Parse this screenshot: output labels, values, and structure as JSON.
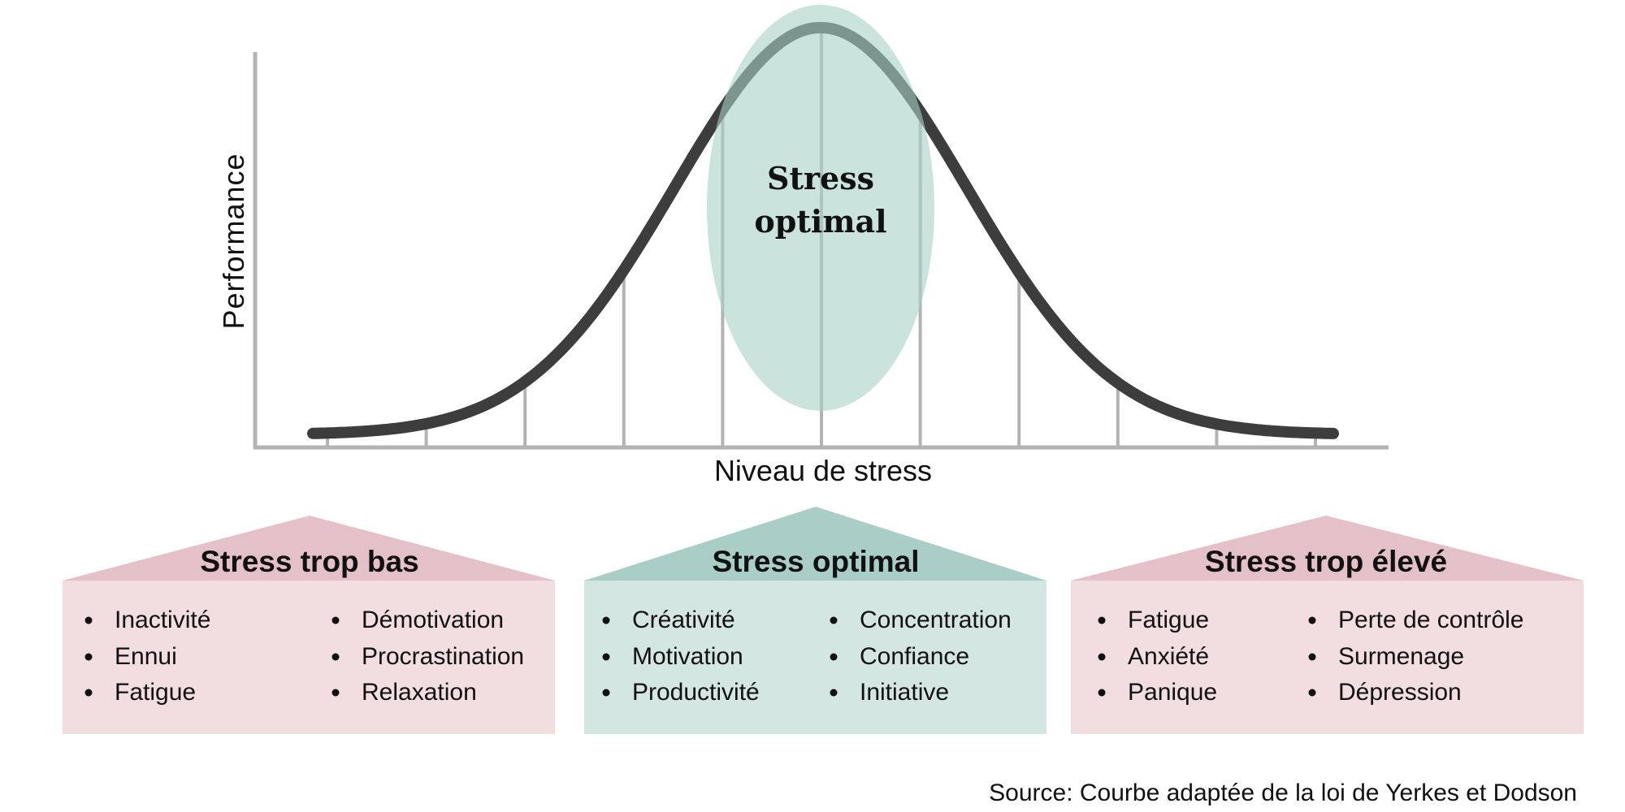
{
  "diagram": {
    "y_axis_label": "Performance",
    "x_axis_label": "Niveau de stress",
    "center_label_lines": [
      "Stress",
      "optimal"
    ],
    "colors": {
      "curve": "#3d3d3d",
      "axis": "#b3b3b3",
      "ellipse": "#a9d1c6",
      "pink_roof": "#e4c1c8",
      "pink_body": "#f2dde1",
      "teal_roof": "#a8cec5",
      "teal_body": "#d3e6e1"
    }
  },
  "panels": [
    {
      "title": "Stress trop bas",
      "col1": [
        "Inactivité",
        "Ennui",
        "Fatigue"
      ],
      "col2": [
        "Démotivation",
        "Procrastination",
        "Relaxation"
      ]
    },
    {
      "title": "Stress optimal",
      "col1": [
        "Créativité",
        "Motivation",
        "Productivité"
      ],
      "col2": [
        "Concentration",
        "Confiance",
        "Initiative"
      ]
    },
    {
      "title": "Stress trop élevé",
      "col1": [
        "Fatigue",
        "Anxiété",
        "Panique"
      ],
      "col2": [
        "Perte de contrôle",
        "Surmenage",
        "Dépression"
      ]
    }
  ],
  "source": "Source: Courbe adaptée de la loi de Yerkes et Dodson"
}
